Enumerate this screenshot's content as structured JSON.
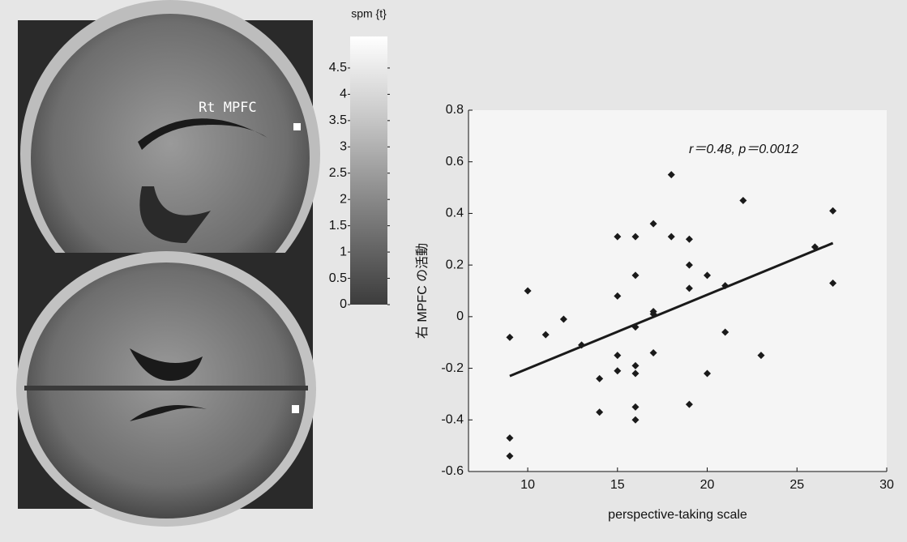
{
  "image_panel": {
    "label": "Rt MPFC"
  },
  "chart_data": [
    {
      "type": "colorbar",
      "title": "spm {t}",
      "ylim": [
        0,
        5.1
      ],
      "yticks": [
        0,
        0.5,
        1,
        1.5,
        2,
        2.5,
        3,
        3.5,
        4,
        4.5
      ]
    },
    {
      "type": "scatter",
      "annotation": "r＝0.48,  p＝0.0012",
      "x_label": "perspective-taking scale",
      "y_label": "右 MPFC の活動",
      "color": "#1a1a1a",
      "x": [
        10,
        9,
        9,
        9,
        11,
        12,
        13,
        14,
        14,
        15,
        15,
        15,
        15,
        16,
        16,
        16,
        16,
        16,
        16,
        16,
        17,
        17,
        17,
        17,
        18,
        18,
        19,
        19,
        19,
        19,
        20,
        20,
        21,
        21,
        22,
        23,
        26,
        27,
        27
      ],
      "values": [
        0.1,
        -0.08,
        -0.47,
        -0.54,
        -0.07,
        -0.01,
        -0.11,
        -0.24,
        -0.37,
        0.31,
        0.08,
        -0.15,
        -0.21,
        0.31,
        0.16,
        -0.04,
        -0.19,
        -0.22,
        -0.35,
        -0.4,
        0.36,
        0.02,
        0.01,
        -0.14,
        0.55,
        0.31,
        0.3,
        0.2,
        0.11,
        -0.34,
        0.16,
        -0.22,
        0.12,
        -0.06,
        0.45,
        -0.15,
        0.27,
        0.41,
        0.13
      ],
      "trend_line": {
        "x": [
          9,
          27
        ],
        "y": [
          -0.23,
          0.285
        ]
      },
      "xlim": [
        6.7,
        30
      ],
      "ylim": [
        -0.6,
        0.8
      ],
      "xticks": [
        10,
        15,
        20,
        25,
        30
      ],
      "yticks": [
        -0.6,
        -0.4,
        -0.2,
        0,
        0.2,
        0.4,
        0.6,
        0.8
      ]
    }
  ]
}
